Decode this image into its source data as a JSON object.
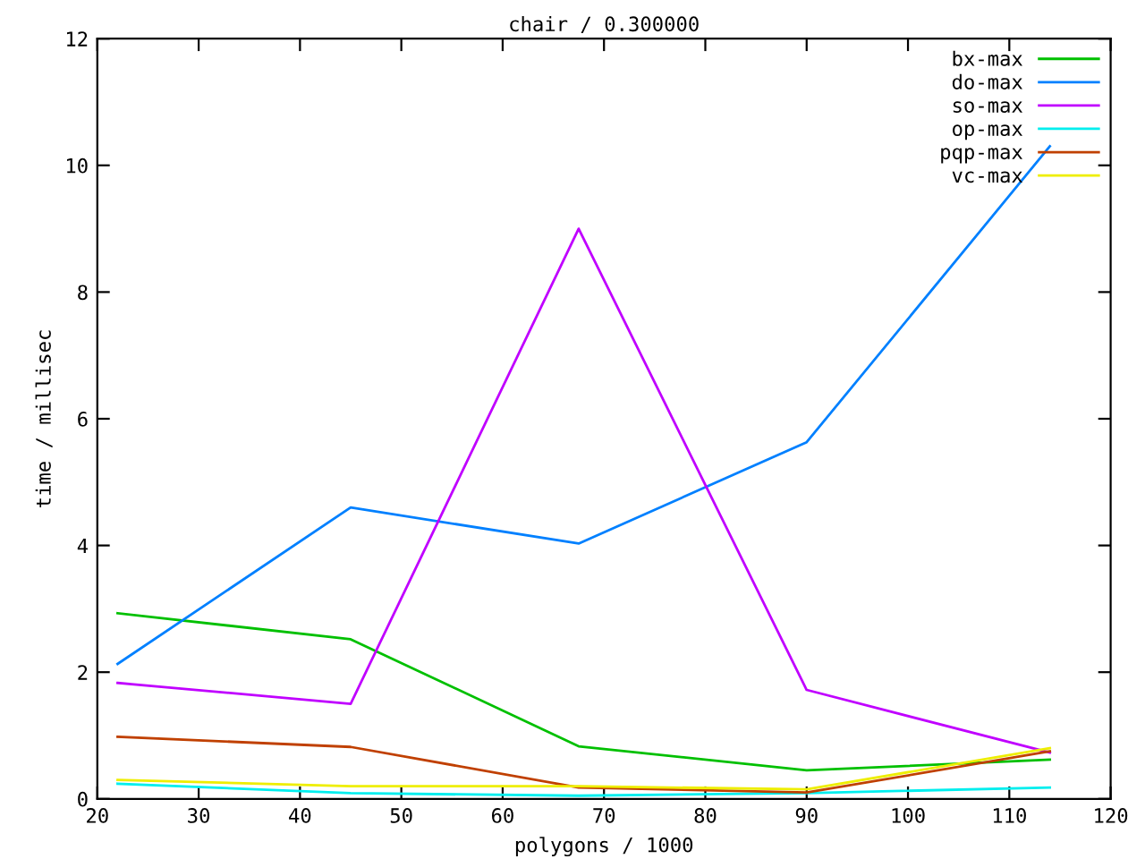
{
  "chart_data": {
    "type": "line",
    "title": "chair / 0.300000",
    "xlabel": "polygons / 1000",
    "ylabel": "time / millisec",
    "x": [
      22,
      45,
      67.5,
      90,
      114
    ],
    "series": [
      {
        "name": "bx-max",
        "color": "#00c000",
        "values": [
          2.93,
          2.52,
          0.83,
          0.45,
          0.62
        ]
      },
      {
        "name": "do-max",
        "color": "#0080ff",
        "values": [
          2.13,
          4.6,
          4.03,
          5.63,
          10.3
        ]
      },
      {
        "name": "so-max",
        "color": "#c000ff",
        "values": [
          1.83,
          1.5,
          9.0,
          1.72,
          0.73
        ]
      },
      {
        "name": "op-max",
        "color": "#00eeee",
        "values": [
          0.24,
          0.09,
          0.05,
          0.09,
          0.18
        ]
      },
      {
        "name": "pqp-max",
        "color": "#c04000",
        "values": [
          0.98,
          0.82,
          0.18,
          0.1,
          0.75
        ]
      },
      {
        "name": "vc-max",
        "color": "#eeee00",
        "values": [
          0.3,
          0.2,
          0.2,
          0.15,
          0.8
        ]
      }
    ],
    "xlim": [
      20,
      120
    ],
    "xticks": [
      20,
      30,
      40,
      50,
      60,
      70,
      80,
      90,
      100,
      110,
      120
    ],
    "ylim": [
      0,
      12
    ],
    "yticks": [
      0,
      2,
      4,
      6,
      8,
      10,
      12
    ],
    "grid": false,
    "legend": "top right",
    "marker": "none",
    "line_style": "solid"
  }
}
